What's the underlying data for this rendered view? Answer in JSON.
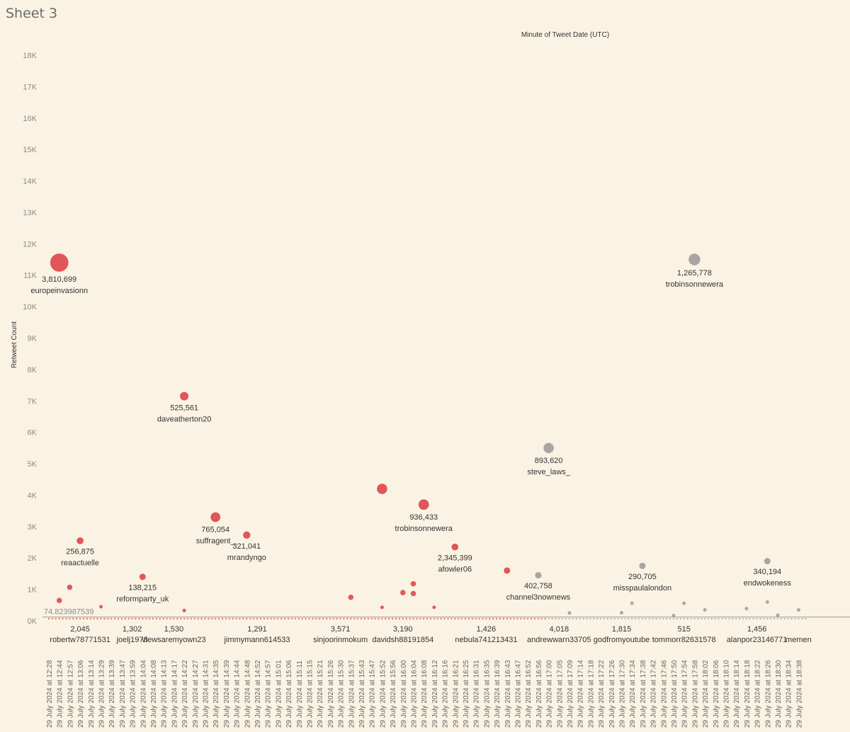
{
  "page": {
    "title": "Sheet 3"
  },
  "colors": {
    "red": "#e0484c",
    "gray": "#a0a0a0",
    "background": "#faf3e3",
    "refline": "#9a9a9a"
  },
  "chart_data": {
    "type": "scatter",
    "title": "",
    "top_axis_label": "Minute of Tweet Date (UTC)",
    "ylabel": "Retweet Count",
    "ylim": [
      0,
      18500
    ],
    "yticks": [
      "0K",
      "1K",
      "2K",
      "3K",
      "4K",
      "5K",
      "6K",
      "7K",
      "8K",
      "9K",
      "10K",
      "11K",
      "12K",
      "13K",
      "14K",
      "15K",
      "16K",
      "17K",
      "18K"
    ],
    "reference_line": {
      "value": 74.823987539,
      "label": "74.823987539"
    },
    "x_categories": [
      "29 July 2024 at 12:28",
      "29 July 2024 at 12:44",
      "29 July 2024 at 12:57",
      "29 July 2024 at 13:06",
      "29 July 2024 at 13:14",
      "29 July 2024 at 13:29",
      "29 July 2024 at 13:39",
      "29 July 2024 at 13:47",
      "29 July 2024 at 13:59",
      "29 July 2024 at 14:04",
      "29 July 2024 at 14:08",
      "29 July 2024 at 14:13",
      "29 July 2024 at 14:17",
      "29 July 2024 at 14:22",
      "29 July 2024 at 14:27",
      "29 July 2024 at 14:31",
      "29 July 2024 at 14:35",
      "29 July 2024 at 14:39",
      "29 July 2024 at 14:44",
      "29 July 2024 at 14:48",
      "29 July 2024 at 14:52",
      "29 July 2024 at 14:57",
      "29 July 2024 at 15:01",
      "29 July 2024 at 15:06",
      "29 July 2024 at 15:11",
      "29 July 2024 at 15:15",
      "29 July 2024 at 15:21",
      "29 July 2024 at 15:26",
      "29 July 2024 at 15:30",
      "29 July 2024 at 15:37",
      "29 July 2024 at 15:43",
      "29 July 2024 at 15:47",
      "29 July 2024 at 15:52",
      "29 July 2024 at 15:56",
      "29 July 2024 at 16:00",
      "29 July 2024 at 16:04",
      "29 July 2024 at 16:08",
      "29 July 2024 at 16:12",
      "29 July 2024 at 16:16",
      "29 July 2024 at 16:21",
      "29 July 2024 at 16:25",
      "29 July 2024 at 16:31",
      "29 July 2024 at 16:35",
      "29 July 2024 at 16:39",
      "29 July 2024 at 16:43",
      "29 July 2024 at 16:47",
      "29 July 2024 at 16:52",
      "29 July 2024 at 16:56",
      "29 July 2024 at 17:00",
      "29 July 2024 at 17:05",
      "29 July 2024 at 17:09",
      "29 July 2024 at 17:14",
      "29 July 2024 at 17:18",
      "29 July 2024 at 17:22",
      "29 July 2024 at 17:26",
      "29 July 2024 at 17:30",
      "29 July 2024 at 17:34",
      "29 July 2024 at 17:38",
      "29 July 2024 at 17:42",
      "29 July 2024 at 17:46",
      "29 July 2024 at 17:50",
      "29 July 2024 at 17:54",
      "29 July 2024 at 17:58",
      "29 July 2024 at 18:02",
      "29 July 2024 at 18:06",
      "29 July 2024 at 18:10",
      "29 July 2024 at 18:14",
      "29 July 2024 at 18:18",
      "29 July 2024 at 18:22",
      "29 July 2024 at 18:26",
      "29 July 2024 at 18:30",
      "29 July 2024 at 18:34",
      "29 July 2024 at 18:38"
    ],
    "points": [
      {
        "x": "29 July 2024 at 12:44",
        "y": 11400,
        "followers": "3,810,699",
        "user": "europeinvasionn",
        "color": "red",
        "size": 3810699
      },
      {
        "x": "29 July 2024 at 13:06",
        "y": 2550,
        "followers": "256,875",
        "user": "reaactuelle",
        "color": "red",
        "size": 256875
      },
      {
        "x": "29 July 2024 at 14:04",
        "y": 1400,
        "followers": "138,215",
        "user": "reformparty_uk",
        "color": "red",
        "size": 138215
      },
      {
        "x": "29 July 2024 at 14:22",
        "y": 7150,
        "followers": "525,561",
        "user": "daveatherton20",
        "color": "red",
        "size": 525561
      },
      {
        "x": "29 July 2024 at 14:35",
        "y": 3300,
        "followers": "765,054",
        "user": "suffragent_",
        "color": "red",
        "size": 765054
      },
      {
        "x": "29 July 2024 at 14:48",
        "y": 2730,
        "followers": "321,041",
        "user": "mrandyngo",
        "color": "red",
        "size": 321041
      },
      {
        "x": "29 July 2024 at 15:52",
        "y": 4200,
        "followers": "",
        "user": "",
        "color": "red",
        "size": 900000
      },
      {
        "x": "29 July 2024 at 16:08",
        "y": 3700,
        "followers": "936,433",
        "user": "trobinsonnewera",
        "color": "red",
        "size": 936433
      },
      {
        "x": "29 July 2024 at 16:21",
        "y": 2350,
        "followers": "2,345,399",
        "user": "afowler06",
        "color": "red",
        "size": 250000
      },
      {
        "x": "29 July 2024 at 16:43",
        "y": 1600,
        "followers": "",
        "user": "",
        "color": "red",
        "size": 150000
      },
      {
        "x": "29 July 2024 at 16:56",
        "y": 1450,
        "followers": "402,758",
        "user": "channel3nownews",
        "color": "gray",
        "size": 120000
      },
      {
        "x": "29 July 2024 at 17:00",
        "y": 5500,
        "followers": "893,620",
        "user": "steve_laws_",
        "color": "gray",
        "size": 893620
      },
      {
        "x": "29 July 2024 at 17:38",
        "y": 1750,
        "followers": "290,705",
        "user": "misspaulalondon",
        "color": "gray",
        "size": 150000
      },
      {
        "x": "29 July 2024 at 17:58",
        "y": 11500,
        "followers": "1,265,778",
        "user": "trobinsonnewera",
        "color": "gray",
        "size": 1265778
      },
      {
        "x": "29 July 2024 at 18:26",
        "y": 1900,
        "followers": "340,194",
        "user": "endwokeness",
        "color": "gray",
        "size": 120000
      }
    ],
    "minor_points": [
      {
        "x": "29 July 2024 at 12:44",
        "y": 650,
        "color": "red"
      },
      {
        "x": "29 July 2024 at 12:57",
        "y": 1070,
        "color": "red"
      },
      {
        "x": "29 July 2024 at 13:29",
        "y": 450,
        "color": "red"
      },
      {
        "x": "29 July 2024 at 14:22",
        "y": 330,
        "color": "red"
      },
      {
        "x": "29 July 2024 at 15:37",
        "y": 750,
        "color": "red"
      },
      {
        "x": "29 July 2024 at 15:52",
        "y": 430,
        "color": "red"
      },
      {
        "x": "29 July 2024 at 16:00",
        "y": 900,
        "color": "red"
      },
      {
        "x": "29 July 2024 at 16:04",
        "y": 870,
        "color": "red"
      },
      {
        "x": "29 July 2024 at 16:04",
        "y": 1180,
        "color": "red"
      },
      {
        "x": "29 July 2024 at 16:12",
        "y": 430,
        "color": "red"
      },
      {
        "x": "29 July 2024 at 17:09",
        "y": 250,
        "color": "gray"
      },
      {
        "x": "29 July 2024 at 17:30",
        "y": 260,
        "color": "gray"
      },
      {
        "x": "29 July 2024 at 17:34",
        "y": 560,
        "color": "gray"
      },
      {
        "x": "29 July 2024 at 17:50",
        "y": 170,
        "color": "gray"
      },
      {
        "x": "29 July 2024 at 17:54",
        "y": 560,
        "color": "gray"
      },
      {
        "x": "29 July 2024 at 18:02",
        "y": 350,
        "color": "gray"
      },
      {
        "x": "29 July 2024 at 18:18",
        "y": 390,
        "color": "gray"
      },
      {
        "x": "29 July 2024 at 18:26",
        "y": 600,
        "color": "gray"
      },
      {
        "x": "29 July 2024 at 18:30",
        "y": 180,
        "color": "gray"
      },
      {
        "x": "29 July 2024 at 18:38",
        "y": 350,
        "color": "gray"
      }
    ],
    "baseline_labels": [
      {
        "x": "29 July 2024 at 13:06",
        "value": "2,045",
        "user": "robertw78771531"
      },
      {
        "x": "29 July 2024 at 13:59",
        "value": "1,302",
        "user": "joelj1978"
      },
      {
        "x": "29 July 2024 at 14:17",
        "value": "1,530",
        "user": "viewsaremyown23"
      },
      {
        "x": "29 July 2024 at 14:52",
        "value": "1,291",
        "user": "jimmymann614533"
      },
      {
        "x": "29 July 2024 at 15:30",
        "value": "3,571",
        "user": "sinjoorinmokum"
      },
      {
        "x": "29 July 2024 at 16:00",
        "value": "3,190",
        "user": "davidsh88191854"
      },
      {
        "x": "29 July 2024 at 16:35",
        "value": "1,426",
        "user": "nebula741213431"
      },
      {
        "x": "29 July 2024 at 17:05",
        "value": "4,018",
        "user": "andrewwarn33705"
      },
      {
        "x": "29 July 2024 at 17:30",
        "value": "1,815",
        "user": "godfromyoutube"
      },
      {
        "x": "29 July 2024 at 17:54",
        "value": "515",
        "user": "tommorr82631578"
      },
      {
        "x": "29 July 2024 at 18:22",
        "value": "1,456",
        "user": "alanpor23146771"
      },
      {
        "x": "29 July 2024 at 18:38",
        "value": "",
        "user": "memen"
      }
    ]
  }
}
